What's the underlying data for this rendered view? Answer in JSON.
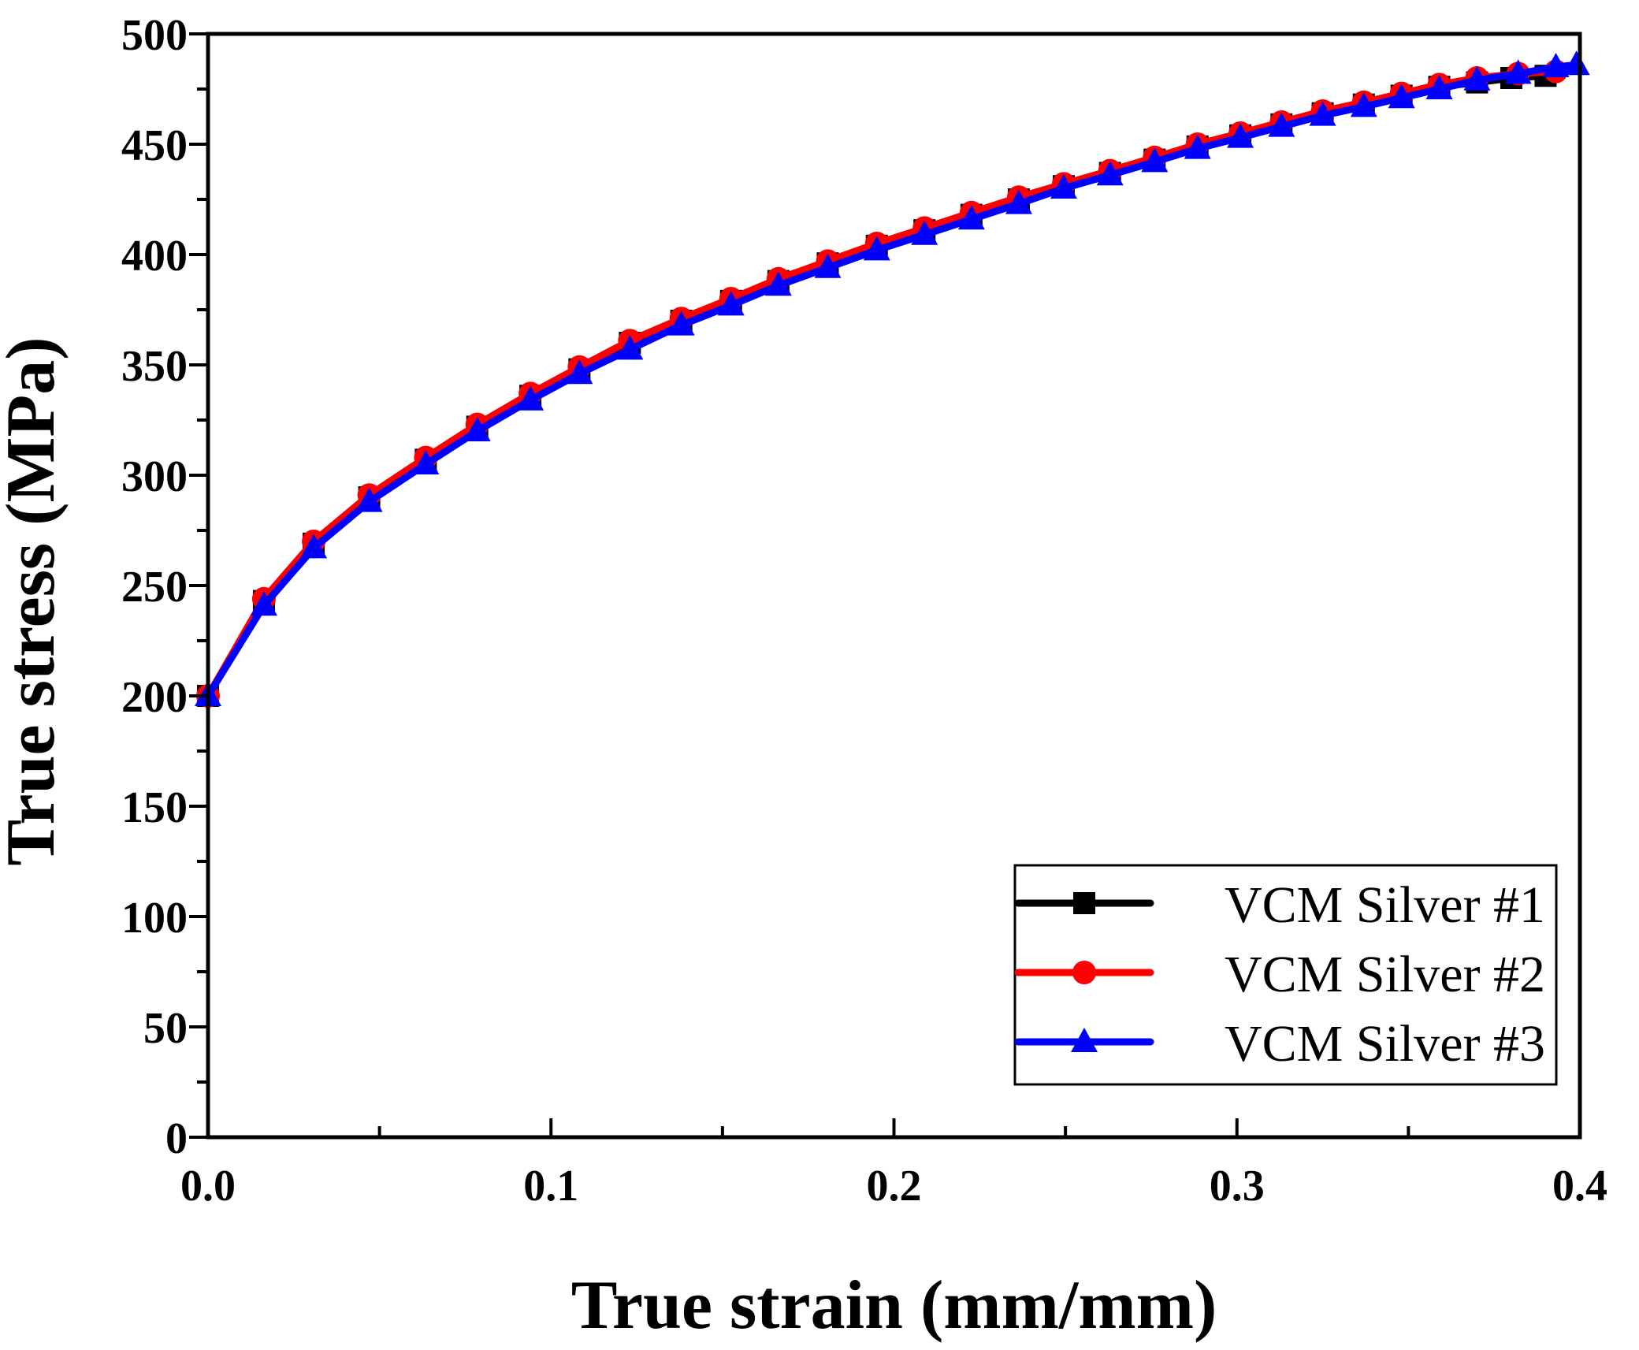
{
  "chart_data": {
    "type": "line",
    "title": "",
    "xlabel": "True strain (mm/mm)",
    "ylabel": "True stress (MPa)",
    "xlim": [
      0.0,
      0.4
    ],
    "ylim": [
      0,
      500
    ],
    "x_ticks": [
      "0.0",
      "0.1",
      "0.2",
      "0.3",
      "0.4"
    ],
    "x_tick_values": [
      0.0,
      0.1,
      0.2,
      0.3,
      0.4
    ],
    "y_ticks": [
      "0",
      "50",
      "100",
      "150",
      "200",
      "250",
      "300",
      "350",
      "400",
      "450",
      "500"
    ],
    "y_tick_values": [
      0,
      50,
      100,
      150,
      200,
      250,
      300,
      350,
      400,
      450,
      500
    ],
    "grid": false,
    "legend_position": "bottom-right",
    "series": [
      {
        "name": "VCM Silver #1",
        "color": "#000000",
        "marker": "square",
        "x": [
          0.0,
          0.0163,
          0.0308,
          0.047,
          0.0635,
          0.0785,
          0.094,
          0.1083,
          0.123,
          0.138,
          0.1525,
          0.1663,
          0.1807,
          0.195,
          0.2089,
          0.2226,
          0.2364,
          0.2495,
          0.263,
          0.276,
          0.2885,
          0.301,
          0.313,
          0.325,
          0.337,
          0.348,
          0.359,
          0.37,
          0.38,
          0.39
        ],
        "y": [
          200,
          243,
          269,
          290,
          307,
          322,
          336,
          348,
          360,
          370,
          379,
          388,
          396,
          404,
          411,
          418,
          425,
          431,
          437,
          443,
          449,
          454,
          459,
          464,
          468,
          472,
          476,
          478,
          480,
          481
        ]
      },
      {
        "name": "VCM Silver #2",
        "color": "#ff0000",
        "marker": "circle",
        "x": [
          0.0,
          0.0163,
          0.0308,
          0.047,
          0.0635,
          0.0785,
          0.094,
          0.1083,
          0.123,
          0.138,
          0.1525,
          0.1663,
          0.1807,
          0.195,
          0.2089,
          0.2226,
          0.2364,
          0.2495,
          0.263,
          0.276,
          0.2885,
          0.301,
          0.313,
          0.325,
          0.337,
          0.348,
          0.359,
          0.37,
          0.382,
          0.393
        ],
        "y": [
          200,
          244,
          270,
          291,
          308,
          323,
          337,
          349,
          361,
          371,
          380,
          389,
          397,
          405,
          412,
          419,
          426,
          432,
          438,
          444,
          450,
          455,
          460,
          465,
          469,
          473,
          477,
          480,
          482,
          483
        ]
      },
      {
        "name": "VCM Silver #3",
        "color": "#0000ff",
        "marker": "triangle",
        "x": [
          0.0,
          0.0163,
          0.0308,
          0.047,
          0.0635,
          0.0785,
          0.094,
          0.1083,
          0.123,
          0.138,
          0.1525,
          0.1663,
          0.1807,
          0.195,
          0.2089,
          0.2226,
          0.2364,
          0.2495,
          0.263,
          0.276,
          0.2885,
          0.301,
          0.313,
          0.325,
          0.337,
          0.348,
          0.359,
          0.37,
          0.382,
          0.393,
          0.399
        ],
        "y": [
          200,
          241,
          267,
          288,
          305,
          320,
          334,
          346,
          357,
          368,
          377,
          386,
          394,
          402,
          409,
          416,
          423,
          430,
          436,
          442,
          448,
          453,
          458,
          463,
          467,
          471,
          475,
          479,
          482,
          485,
          486
        ]
      }
    ]
  }
}
